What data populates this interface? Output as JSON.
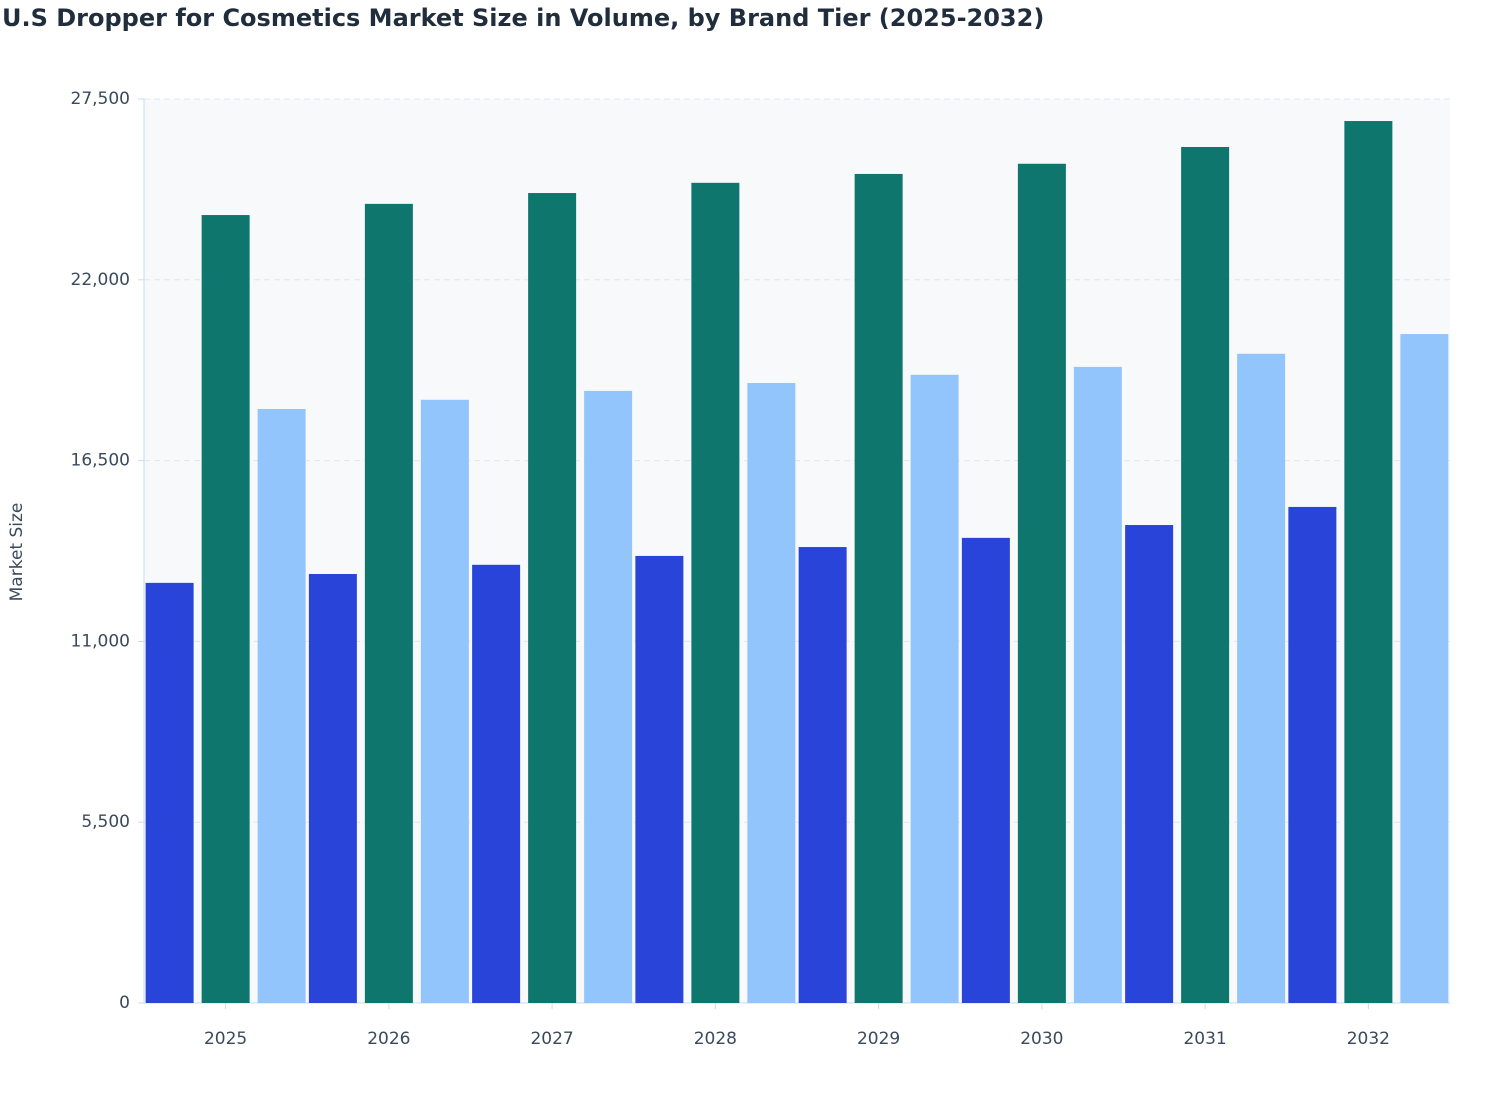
{
  "chart_data": {
    "type": "bar",
    "title": "U.S Dropper for Cosmetics Market Size in Volume, by Brand Tier (2025-2032)",
    "y_label": "Market Size",
    "categories": [
      "2025",
      "2026",
      "2027",
      "2028",
      "2029",
      "2030",
      "2031",
      "2032"
    ],
    "series": [
      {
        "color": "#2844d9",
        "values": [
          12780,
          13050,
          13330,
          13600,
          13870,
          14150,
          14540,
          15090
        ]
      },
      {
        "color": "#0f766e",
        "values": [
          23970,
          24310,
          24640,
          24950,
          25220,
          25530,
          26040,
          26830
        ]
      },
      {
        "color": "#93c5fd",
        "values": [
          18070,
          18350,
          18620,
          18860,
          19110,
          19350,
          19750,
          20350
        ]
      }
    ],
    "ylim": [
      0,
      27500
    ],
    "yticks": [
      0,
      {
        "value": 5500,
        "label": "5,500"
      },
      {
        "value": 11000,
        "label": "11,000"
      },
      {
        "value": 16500,
        "label": "16,500"
      },
      {
        "value": 22000,
        "label": "22,000"
      },
      {
        "value": 27500,
        "label": "27,500"
      }
    ],
    "grid": true
  }
}
